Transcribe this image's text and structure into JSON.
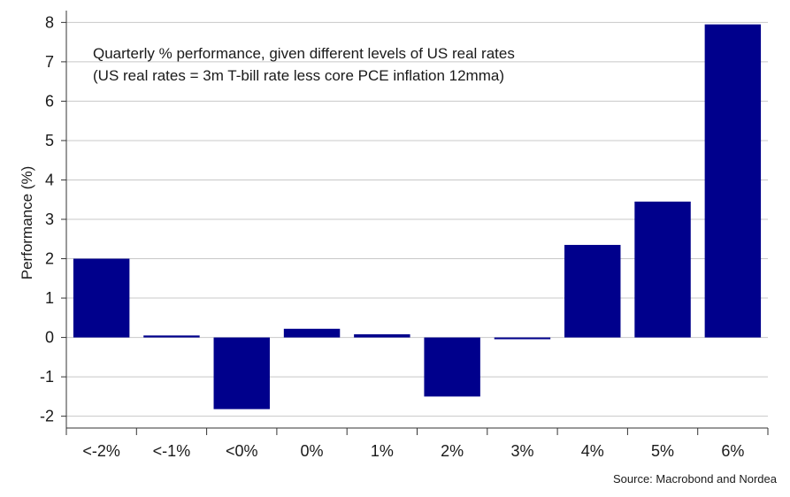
{
  "chart_data": {
    "type": "bar",
    "categories": [
      "<-2%",
      "<-1%",
      "<0%",
      "0%",
      "1%",
      "2%",
      "3%",
      "4%",
      "5%",
      "6%"
    ],
    "values": [
      2.0,
      0.05,
      -1.82,
      0.22,
      0.08,
      -1.5,
      -0.03,
      2.35,
      3.45,
      7.95
    ],
    "ylabel": "Performance (%)",
    "xlabel": "",
    "ylim": [
      -2.3,
      8.3
    ],
    "yticks": [
      "8",
      "7",
      "6",
      "5",
      "4",
      "3",
      "2",
      "1",
      "0",
      "-1",
      "-2"
    ],
    "ytick_values": [
      8,
      7,
      6,
      5,
      4,
      3,
      2,
      1,
      0,
      -1,
      -2
    ],
    "annotation_lines": [
      "Quarterly % performance, given different levels of US real rates",
      "(US real rates = 3m T-bill rate less core PCE inflation 12mma)"
    ],
    "source": "Source: Macrobond and Nordea",
    "grid": true,
    "bar_color": "#00008c",
    "grid_color": "#c8c8c8",
    "axis_color": "#333333"
  }
}
